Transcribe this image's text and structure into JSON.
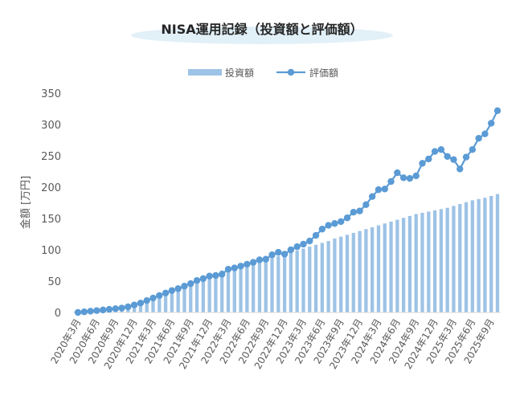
{
  "chart_data": {
    "type": "bar+line",
    "title": "NISA運用記録（投資額と評価額）",
    "ylabel": "金額 [万円]",
    "ylim": [
      0,
      350
    ],
    "yticks": [
      0,
      50,
      100,
      150,
      200,
      250,
      300,
      350
    ],
    "grid": false,
    "legend_position": "top-center",
    "categories": [
      "2020年3月",
      "2020年4月",
      "2020年5月",
      "2020年6月",
      "2020年7月",
      "2020年8月",
      "2020年9月",
      "2020年10月",
      "2020年11月",
      "2020年12月",
      "2021年1月",
      "2021年2月",
      "2021年3月",
      "2021年4月",
      "2021年5月",
      "2021年6月",
      "2021年7月",
      "2021年8月",
      "2021年9月",
      "2021年10月",
      "2021年11月",
      "2021年12月",
      "2022年1月",
      "2022年2月",
      "2022年3月",
      "2022年4月",
      "2022年5月",
      "2022年6月",
      "2022年7月",
      "2022年8月",
      "2022年9月",
      "2022年10月",
      "2022年11月",
      "2022年12月",
      "2023年1月",
      "2023年2月",
      "2023年3月",
      "2023年4月",
      "2023年5月",
      "2023年6月",
      "2023年7月",
      "2023年8月",
      "2023年9月",
      "2023年10月",
      "2023年11月",
      "2023年12月",
      "2024年1月",
      "2024年2月",
      "2024年3月",
      "2024年4月",
      "2024年5月",
      "2024年6月",
      "2024年7月",
      "2024年8月",
      "2024年9月",
      "2024年10月",
      "2024年11月",
      "2024年12月",
      "2025年1月",
      "2025年2月",
      "2025年3月",
      "2025年4月",
      "2025年5月",
      "2025年6月",
      "2025年7月",
      "2025年8月",
      "2025年9月",
      "2025年10月"
    ],
    "x_tick_labels": [
      "2020年3月",
      "2020年6月",
      "2020年9月",
      "2020年12月",
      "2021年3月",
      "2021年6月",
      "2021年9月",
      "2021年12月",
      "2022年3月",
      "2022年6月",
      "2022年9月",
      "2022年12月",
      "2023年3月",
      "2023年6月",
      "2023年9月",
      "2023年12月",
      "2024年3月",
      "2024年6月",
      "2024年9月",
      "2024年12月",
      "2025年3月",
      "2025年6月",
      "2025年9月"
    ],
    "series": [
      {
        "name": "投資額",
        "type": "bar",
        "color": "#9dc3e6",
        "values": [
          0,
          1,
          2,
          3,
          5,
          6,
          7,
          9,
          11,
          13,
          16,
          19,
          22,
          26,
          30,
          34,
          38,
          43,
          47,
          51,
          55,
          59,
          63,
          67,
          70,
          72,
          74,
          76,
          78,
          81,
          84,
          87,
          90,
          93,
          96,
          99,
          102,
          105,
          108,
          111,
          114,
          118,
          121,
          124,
          127,
          130,
          133,
          136,
          139,
          142,
          145,
          148,
          151,
          154,
          157,
          159,
          161,
          163,
          165,
          167,
          170,
          173,
          176,
          179,
          181,
          183,
          186,
          189
        ]
      },
      {
        "name": "評価額",
        "type": "line",
        "color": "#5b9bd5",
        "values": [
          0,
          1,
          2,
          3,
          4,
          5,
          6,
          7,
          9,
          12,
          15,
          19,
          23,
          27,
          31,
          35,
          38,
          42,
          46,
          51,
          54,
          58,
          59,
          61,
          69,
          71,
          74,
          77,
          80,
          84,
          85,
          92,
          96,
          93,
          100,
          105,
          109,
          114,
          123,
          133,
          139,
          142,
          145,
          151,
          160,
          162,
          172,
          185,
          196,
          197,
          209,
          223,
          215,
          214,
          218,
          238,
          245,
          257,
          260,
          249,
          244,
          229,
          248,
          260,
          278,
          285,
          302,
          322
        ]
      }
    ]
  }
}
